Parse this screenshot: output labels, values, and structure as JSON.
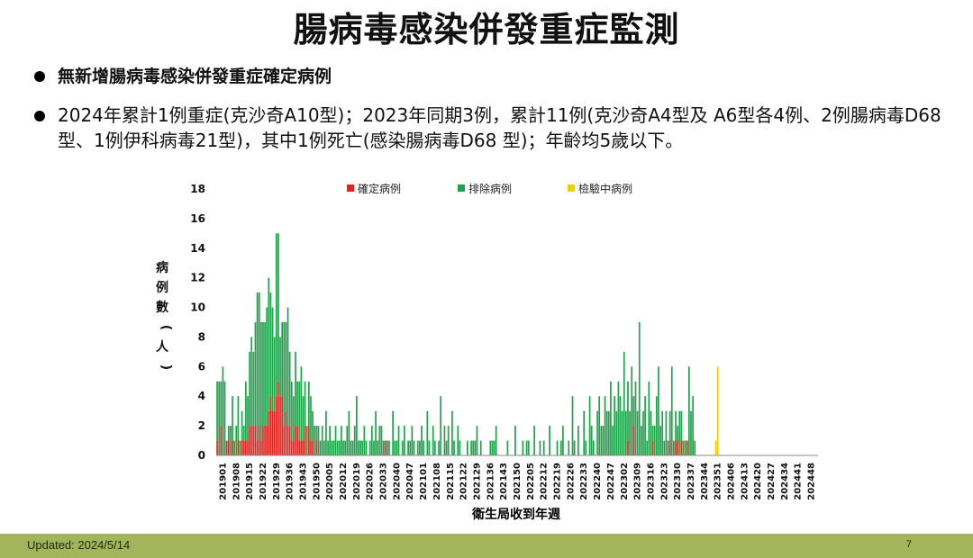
{
  "slide": {
    "title": "腸病毒感染併發重症監測",
    "bullets": [
      "無新增腸病毒感染併發重症確定病例",
      "2024年累計1例重症(克沙奇A10型)；2023年同期3例，累計11例(克沙奇A4型及 A6型各4例、2例腸病毒D68 型、1例伊科病毒21型)，其中1例死亡(感染腸病毒D68 型)；年齡均5歲以下。"
    ]
  },
  "footer": {
    "updated": "Updated: 2024/5/14",
    "page": "7"
  },
  "colors": {
    "confirmed": "#e8211c",
    "excluded": "#1ea34a",
    "pending": "#f2cd00",
    "footer_bar": "#a3b45a"
  },
  "chart_data": {
    "type": "bar",
    "stacked": true,
    "title": "",
    "xlabel": "衛生局收到年週",
    "ylabel": "病例數(人)",
    "ylim": [
      0,
      18
    ],
    "yticks": [
      0,
      2,
      4,
      6,
      8,
      10,
      12,
      14,
      16,
      18
    ],
    "legend": {
      "placement": "top",
      "items": [
        "確定病例",
        "排除病例",
        "檢驗中病例"
      ]
    },
    "xtick_labels": [
      "201901",
      "201908",
      "201915",
      "201922",
      "201929",
      "201936",
      "201943",
      "201950",
      "202005",
      "202012",
      "202019",
      "202026",
      "202033",
      "202040",
      "202047",
      "202101",
      "202108",
      "202115",
      "202122",
      "202129",
      "202136",
      "202143",
      "202150",
      "202205",
      "202212",
      "202219",
      "202226",
      "202233",
      "202240",
      "202247",
      "202302",
      "202309",
      "202316",
      "202323",
      "202330",
      "202337",
      "202344",
      "202351",
      "202406",
      "202413",
      "202420",
      "202427",
      "202434",
      "202441",
      "202448"
    ],
    "weeks_per_tick": 7,
    "series": [
      {
        "name": "確定病例",
        "color": "#e8211c",
        "values": [
          1,
          0,
          2,
          0,
          0,
          1,
          1,
          0,
          1,
          0,
          0,
          1,
          0,
          1,
          1,
          1,
          1,
          2,
          2,
          2,
          2,
          1,
          2,
          1,
          2,
          2,
          2,
          3,
          4,
          3,
          3,
          4,
          5,
          4,
          4,
          2,
          3,
          2,
          2,
          1,
          1,
          2,
          2,
          1,
          1,
          1,
          2,
          0,
          2,
          1,
          1,
          0,
          1,
          0,
          0,
          0,
          0,
          0,
          0,
          0,
          0,
          0,
          0,
          0,
          0,
          0,
          0,
          0,
          0,
          0,
          0,
          0,
          0,
          0,
          0,
          0,
          0,
          0,
          0,
          0,
          0,
          0,
          0,
          0,
          0,
          0,
          0,
          0,
          1,
          0,
          0,
          0,
          0,
          0,
          0,
          0,
          0,
          0,
          0,
          0,
          0,
          0,
          0,
          0,
          0,
          0,
          0,
          0,
          0,
          0,
          0,
          0,
          0,
          0,
          0,
          0,
          0,
          0,
          0,
          0,
          0,
          0,
          0,
          0,
          0,
          0,
          0,
          0,
          0,
          0,
          0,
          0,
          0,
          0,
          0,
          0,
          0,
          0,
          0,
          0,
          0,
          0,
          0,
          0,
          0,
          0,
          0,
          0,
          0,
          0,
          0,
          0,
          0,
          0,
          0,
          0,
          0,
          0,
          0,
          0,
          0,
          0,
          0,
          0,
          0,
          0,
          0,
          0,
          0,
          0,
          0,
          0,
          0,
          0,
          0,
          0,
          0,
          0,
          0,
          0,
          0,
          0,
          0,
          0,
          0,
          0,
          0,
          0,
          0,
          0,
          0,
          0,
          0,
          0,
          0,
          0,
          0,
          0,
          0,
          0,
          0,
          0,
          0,
          0,
          0,
          0,
          0,
          0,
          0,
          0,
          0,
          0,
          0,
          0,
          0,
          1,
          0,
          0,
          2,
          0,
          0,
          0,
          0,
          0,
          0,
          0,
          0,
          0,
          1,
          0,
          0,
          0,
          0,
          0,
          0,
          0,
          0,
          1,
          0,
          0,
          1,
          1,
          0,
          1,
          0,
          0,
          1,
          0,
          0,
          0,
          0,
          0,
          0,
          0,
          0,
          0,
          0,
          0,
          0,
          0,
          0,
          0,
          0,
          0,
          0,
          0,
          0,
          0,
          0,
          0,
          0,
          0,
          0,
          0,
          0,
          0,
          0,
          0,
          0,
          0,
          0,
          0,
          0,
          0,
          0,
          0,
          0,
          0,
          0,
          0,
          0,
          0,
          0,
          0,
          0,
          0,
          0,
          0,
          0,
          0,
          0,
          0,
          0,
          0,
          0,
          0,
          0,
          0,
          0,
          0,
          0,
          0,
          0,
          0,
          0,
          0,
          0,
          0,
          0,
          0,
          0,
          0,
          0
        ]
      },
      {
        "name": "排除病例",
        "color": "#1ea34a",
        "values": [
          4,
          5,
          3,
          6,
          5,
          0,
          1,
          2,
          3,
          1,
          2,
          3,
          1,
          2,
          1,
          4,
          3,
          5,
          6,
          5,
          7,
          10,
          9,
          8,
          7,
          7,
          8,
          9,
          7,
          7,
          5,
          11,
          10,
          4,
          5,
          7,
          6,
          8,
          5,
          4,
          3,
          5,
          3,
          4,
          5,
          3,
          3,
          2,
          3,
          3,
          2,
          2,
          1,
          2,
          1,
          2,
          1,
          3,
          1,
          2,
          1,
          1,
          2,
          1,
          1,
          2,
          1,
          1,
          2,
          3,
          1,
          1,
          2,
          4,
          1,
          1,
          1,
          2,
          1,
          0,
          1,
          2,
          1,
          3,
          1,
          2,
          2,
          1,
          0,
          1,
          1,
          0,
          3,
          1,
          1,
          2,
          0,
          1,
          2,
          0,
          1,
          1,
          2,
          1,
          0,
          1,
          1,
          2,
          1,
          0,
          3,
          1,
          0,
          2,
          1,
          0,
          1,
          4,
          0,
          2,
          1,
          2,
          0,
          3,
          1,
          0,
          2,
          1,
          0,
          0,
          0,
          1,
          0,
          1,
          1,
          1,
          2,
          0,
          1,
          0,
          0,
          0,
          0,
          1,
          1,
          1,
          2,
          0,
          0,
          0,
          0,
          0,
          1,
          0,
          0,
          0,
          2,
          0,
          0,
          0,
          1,
          0,
          1,
          1,
          0,
          0,
          2,
          0,
          0,
          1,
          0,
          1,
          0,
          0,
          2,
          0,
          0,
          0,
          1,
          0,
          1,
          2,
          0,
          0,
          1,
          0,
          4,
          1,
          0,
          2,
          0,
          0,
          3,
          1,
          0,
          4,
          2,
          1,
          0,
          3,
          4,
          2,
          2,
          4,
          3,
          3,
          5,
          2,
          4,
          3,
          5,
          4,
          3,
          7,
          3,
          4,
          3,
          6,
          2,
          5,
          3,
          9,
          2,
          3,
          4,
          1,
          5,
          3,
          1,
          2,
          4,
          6,
          2,
          3,
          1,
          3,
          1,
          2,
          6,
          1,
          2,
          1,
          3,
          2,
          1,
          1,
          0,
          6,
          3,
          4,
          1,
          0,
          0,
          0,
          0,
          0,
          0,
          0,
          0,
          0,
          0,
          0,
          0,
          0,
          0,
          0,
          0,
          0,
          0,
          0,
          0,
          0,
          0,
          0,
          0,
          0,
          0,
          0,
          0,
          0,
          0,
          0,
          0,
          0,
          0,
          0,
          0,
          0,
          0,
          0,
          0,
          0,
          0,
          0,
          0,
          0,
          0,
          0,
          0,
          0,
          0,
          0,
          0,
          0,
          0,
          0,
          0,
          0,
          0,
          0,
          0,
          0,
          0,
          0,
          0,
          0,
          0,
          0,
          0
        ]
      },
      {
        "name": "檢驗中病例",
        "color": "#f2cd00",
        "values": [
          0,
          0,
          0,
          0,
          0,
          0,
          0,
          0,
          0,
          0,
          0,
          0,
          0,
          0,
          0,
          0,
          0,
          0,
          0,
          0,
          0,
          0,
          0,
          0,
          0,
          0,
          0,
          0,
          0,
          0,
          0,
          0,
          0,
          0,
          0,
          0,
          0,
          0,
          0,
          0,
          0,
          0,
          0,
          0,
          0,
          0,
          0,
          0,
          0,
          0,
          0,
          0,
          0,
          0,
          0,
          0,
          0,
          0,
          0,
          0,
          0,
          0,
          0,
          0,
          0,
          0,
          0,
          0,
          0,
          0,
          0,
          0,
          0,
          0,
          0,
          0,
          0,
          0,
          0,
          0,
          0,
          0,
          0,
          0,
          0,
          0,
          0,
          0,
          0,
          0,
          0,
          0,
          0,
          0,
          0,
          0,
          0,
          0,
          0,
          0,
          0,
          0,
          0,
          0,
          0,
          0,
          0,
          0,
          0,
          0,
          0,
          0,
          0,
          0,
          0,
          0,
          0,
          0,
          0,
          0,
          0,
          0,
          0,
          0,
          0,
          0,
          0,
          0,
          0,
          0,
          0,
          0,
          0,
          0,
          0,
          0,
          0,
          0,
          0,
          0,
          0,
          0,
          0,
          0,
          0,
          0,
          0,
          0,
          0,
          0,
          0,
          0,
          0,
          0,
          0,
          0,
          0,
          0,
          0,
          0,
          0,
          0,
          0,
          0,
          0,
          0,
          0,
          0,
          0,
          0,
          0,
          0,
          0,
          0,
          0,
          0,
          0,
          0,
          0,
          0,
          0,
          0,
          0,
          0,
          0,
          0,
          0,
          0,
          0,
          0,
          0,
          0,
          0,
          0,
          0,
          0,
          0,
          0,
          0,
          0,
          0,
          0,
          0,
          0,
          0,
          0,
          0,
          0,
          0,
          0,
          0,
          0,
          0,
          0,
          0,
          0,
          0,
          0,
          0,
          0,
          0,
          0,
          0,
          0,
          0,
          0,
          0,
          0,
          0,
          0,
          0,
          0,
          0,
          0,
          0,
          0,
          0,
          0,
          0,
          0,
          0,
          0,
          0,
          0,
          0,
          0,
          0,
          0,
          0,
          0,
          0,
          0,
          0,
          0,
          0,
          0,
          0,
          0,
          0,
          0,
          0,
          1,
          6,
          0,
          0,
          0,
          0,
          0,
          0,
          0,
          0,
          0,
          0,
          0,
          0,
          0,
          0,
          0,
          0,
          0,
          0,
          0,
          0,
          0,
          0,
          0,
          0,
          0,
          0,
          0,
          0,
          0,
          0,
          0,
          0,
          0,
          0,
          0,
          0,
          0,
          0,
          0,
          0,
          0,
          0,
          0,
          0,
          0,
          0,
          0,
          0,
          0,
          0,
          0,
          0,
          0,
          0,
          0,
          0,
          0,
          0,
          0,
          0,
          0,
          0,
          0,
          0,
          0,
          0,
          0
        ]
      }
    ]
  }
}
